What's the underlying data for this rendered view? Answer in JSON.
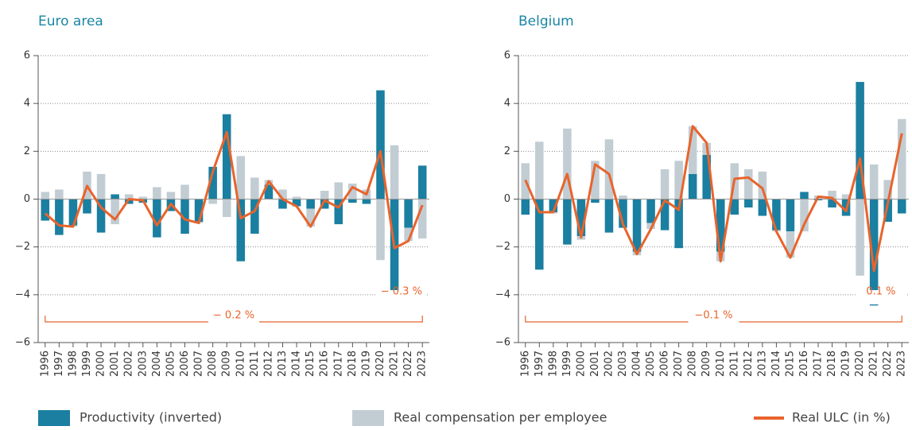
{
  "chart_data": [
    {
      "type": "bar",
      "title": "Euro area",
      "categories": [
        "1996",
        "1997",
        "1998",
        "1999",
        "2000",
        "2001",
        "2002",
        "2003",
        "2004",
        "2005",
        "2006",
        "2007",
        "2008",
        "2009",
        "2010",
        "2011",
        "2012",
        "2013",
        "2014",
        "2015",
        "2016",
        "2017",
        "2018",
        "2019",
        "2020",
        "2021",
        "2022",
        "2023"
      ],
      "series": [
        {
          "name": "Productivity (inverted)",
          "color": "#1a7fa0",
          "values": [
            -0.9,
            -1.5,
            -1.1,
            -0.6,
            -1.4,
            0.2,
            -0.2,
            -0.15,
            -1.6,
            -0.5,
            -1.45,
            -0.95,
            1.35,
            3.55,
            -2.6,
            -1.45,
            0.6,
            -0.4,
            -0.3,
            -0.4,
            -0.4,
            -1.05,
            -0.15,
            -0.2,
            4.55,
            -4.25,
            -1.2,
            1.4
          ]
        },
        {
          "name": "Real compensation per employee",
          "color": "#c2cdd3",
          "values": [
            0.3,
            0.4,
            -0.05,
            1.15,
            1.05,
            -1.05,
            0.2,
            0.1,
            0.5,
            0.3,
            0.6,
            -0.05,
            -0.2,
            -0.75,
            1.8,
            0.9,
            0.2,
            0.4,
            0.1,
            -0.75,
            0.35,
            0.7,
            0.65,
            0.4,
            -2.55,
            2.25,
            -0.55,
            -1.65
          ]
        },
        {
          "name": "Real ULC (in %)",
          "color": "#e8642c",
          "type": "line",
          "values": [
            -0.6,
            -1.1,
            -1.15,
            0.55,
            -0.35,
            -0.85,
            0.0,
            -0.05,
            -1.1,
            -0.2,
            -0.85,
            -1.0,
            1.15,
            2.8,
            -0.8,
            -0.5,
            0.75,
            0.0,
            -0.3,
            -1.15,
            -0.05,
            -0.35,
            0.5,
            0.2,
            2.0,
            -2.05,
            -1.75,
            -0.25
          ]
        }
      ],
      "ylim": [
        -6,
        6
      ],
      "yticks": [
        {
          "value": -6,
          "label": "−6"
        },
        {
          "value": -4,
          "label": "−4"
        },
        {
          "value": -2,
          "label": "−2"
        },
        0,
        2,
        4,
        6
      ],
      "grid": true,
      "legend": "bottom",
      "annotations": [
        "− 0.2 %",
        "− 0.3 %"
      ]
    },
    {
      "type": "bar",
      "title": "Belgium",
      "categories": [
        "1996",
        "1997",
        "1998",
        "1999",
        "2000",
        "2001",
        "2002",
        "2003",
        "2004",
        "2005",
        "2006",
        "2007",
        "2008",
        "2009",
        "2010",
        "2011",
        "2012",
        "2013",
        "2014",
        "2015",
        "2016",
        "2017",
        "2018",
        "2019",
        "2020",
        "2021",
        "2022",
        "2023"
      ],
      "series": [
        {
          "name": "Productivity (inverted)",
          "color": "#1a7fa0",
          "values": [
            -0.65,
            -2.95,
            -0.55,
            -1.9,
            -1.55,
            -0.15,
            -1.4,
            -1.2,
            -2.2,
            -1.0,
            -1.3,
            -2.05,
            1.05,
            1.85,
            -2.2,
            -0.65,
            -0.35,
            -0.7,
            -1.3,
            -1.35,
            0.3,
            -0.05,
            -0.35,
            -0.7,
            4.9,
            -4.45,
            -0.95,
            -0.6
          ]
        },
        {
          "name": "Real compensation per employee",
          "color": "#c2cdd3",
          "values": [
            1.5,
            2.4,
            -0.05,
            2.95,
            -0.15,
            1.6,
            2.5,
            0.15,
            -0.15,
            -0.25,
            1.25,
            1.6,
            2.0,
            0.5,
            -0.4,
            1.5,
            1.25,
            1.15,
            -0.05,
            -1.1,
            -1.35,
            0.15,
            0.35,
            0.2,
            -3.2,
            1.45,
            0.8,
            3.35
          ]
        },
        {
          "name": "Real ULC (in %)",
          "color": "#e8642c",
          "type": "line",
          "values": [
            0.8,
            -0.55,
            -0.55,
            1.05,
            -1.6,
            1.45,
            1.05,
            -1.05,
            -2.3,
            -1.25,
            -0.05,
            -0.45,
            3.05,
            2.35,
            -2.6,
            0.85,
            0.9,
            0.45,
            -1.35,
            -2.45,
            -1.05,
            0.1,
            0.05,
            -0.5,
            1.7,
            -3.0,
            -0.15,
            2.75
          ]
        }
      ],
      "ylim": [
        -6,
        6
      ],
      "yticks": [
        {
          "value": -6,
          "label": "−6"
        },
        {
          "value": -4,
          "label": "−4"
        },
        {
          "value": -2,
          "label": "−2"
        },
        0,
        2,
        4,
        6
      ],
      "grid": true,
      "legend": "bottom",
      "annotations": [
        "−0.1 %",
        "0.1 %"
      ]
    }
  ]
}
